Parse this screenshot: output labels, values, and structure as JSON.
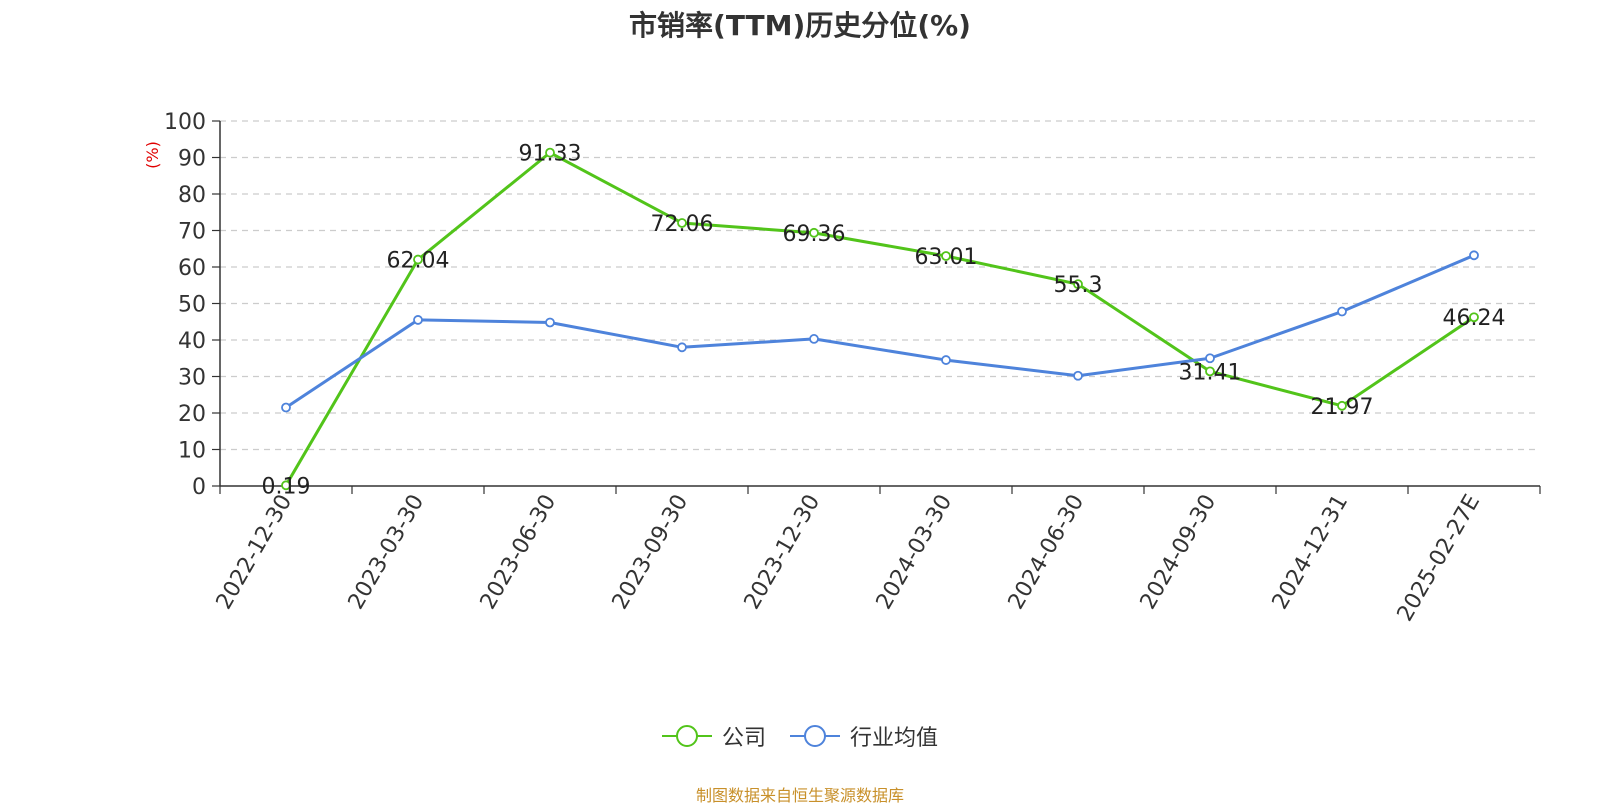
{
  "chart_data": {
    "type": "line",
    "title": "市销率(TTM)历史分位(%)",
    "ylabel": "(%)",
    "xlabel": "",
    "categories": [
      "2022-12-30",
      "2023-03-30",
      "2023-06-30",
      "2023-09-30",
      "2023-12-30",
      "2024-03-30",
      "2024-06-30",
      "2024-09-30",
      "2024-12-31",
      "2025-02-27E"
    ],
    "ylim": [
      0,
      100
    ],
    "yticks": [
      0,
      10,
      20,
      30,
      40,
      50,
      60,
      70,
      80,
      90,
      100
    ],
    "grid": true,
    "legend_position": "bottom",
    "series": [
      {
        "name": "公司",
        "color": "#52c41a",
        "values": [
          0.19,
          62.04,
          91.33,
          72.06,
          69.36,
          63.01,
          55.3,
          31.41,
          21.97,
          46.24
        ],
        "labels": [
          "0.19",
          "62.04",
          "91.33",
          "72.06",
          "69.36",
          "63.01",
          "55.3",
          "31.41",
          "21.97",
          "46.24"
        ]
      },
      {
        "name": "行业均值",
        "color": "#4e83db",
        "values": [
          21.5,
          45.5,
          44.8,
          38.0,
          40.3,
          34.5,
          30.2,
          35.0,
          47.8,
          63.2
        ]
      }
    ]
  },
  "source_note": "制图数据来自恒生聚源数据库"
}
